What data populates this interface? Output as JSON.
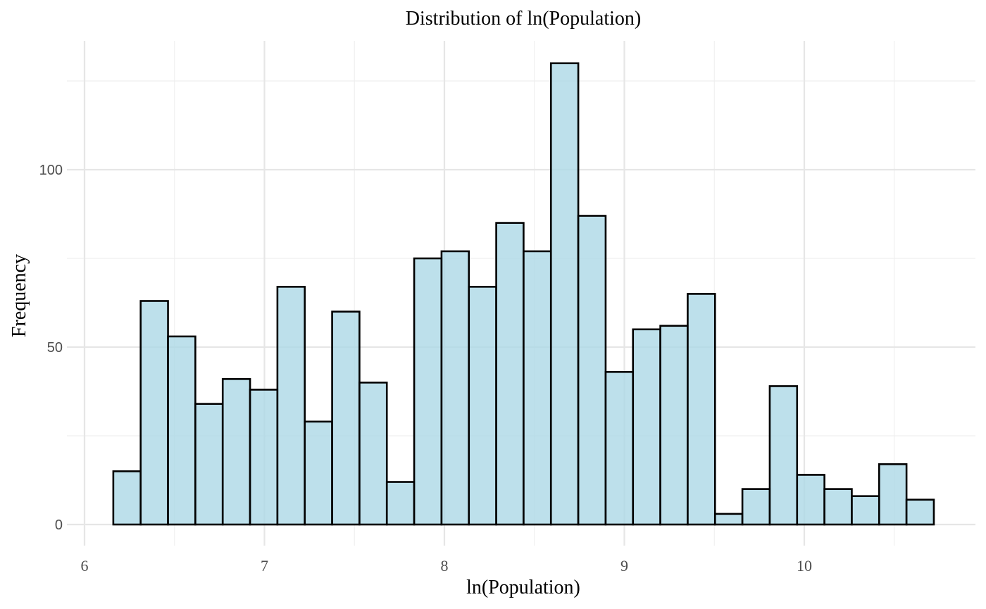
{
  "chart_data": {
    "type": "bar",
    "title": "Distribution of ln(Population)",
    "xlabel": "ln(Population)",
    "ylabel": "Frequency",
    "xlim": [
      6.0,
      10.85
    ],
    "ylim": [
      -6,
      138
    ],
    "x_ticks": [
      6,
      7,
      8,
      9,
      10
    ],
    "x_tick_labels": [
      "6",
      "7",
      "8",
      "9",
      "10"
    ],
    "y_ticks": [
      0,
      50,
      100
    ],
    "y_tick_labels": [
      "0",
      "50",
      "100"
    ],
    "grid": true,
    "legend": "none",
    "bin_width": 0.152,
    "bin_edges_start": 6.16,
    "bins": [
      {
        "x": 6.24,
        "count": 15
      },
      {
        "x": 6.39,
        "count": 63
      },
      {
        "x": 6.54,
        "count": 53
      },
      {
        "x": 6.69,
        "count": 34
      },
      {
        "x": 6.85,
        "count": 41
      },
      {
        "x": 7.0,
        "count": 38
      },
      {
        "x": 7.15,
        "count": 67
      },
      {
        "x": 7.3,
        "count": 29
      },
      {
        "x": 7.45,
        "count": 60
      },
      {
        "x": 7.61,
        "count": 40
      },
      {
        "x": 7.76,
        "count": 12
      },
      {
        "x": 7.91,
        "count": 75
      },
      {
        "x": 8.06,
        "count": 77
      },
      {
        "x": 8.21,
        "count": 67
      },
      {
        "x": 8.37,
        "count": 85
      },
      {
        "x": 8.52,
        "count": 77
      },
      {
        "x": 8.67,
        "count": 130
      },
      {
        "x": 8.82,
        "count": 87
      },
      {
        "x": 8.97,
        "count": 43
      },
      {
        "x": 9.13,
        "count": 55
      },
      {
        "x": 9.28,
        "count": 56
      },
      {
        "x": 9.43,
        "count": 65
      },
      {
        "x": 9.58,
        "count": 3
      },
      {
        "x": 9.73,
        "count": 10
      },
      {
        "x": 9.89,
        "count": 39
      },
      {
        "x": 10.04,
        "count": 14
      },
      {
        "x": 10.19,
        "count": 10
      },
      {
        "x": 10.34,
        "count": 8
      },
      {
        "x": 10.49,
        "count": 17
      },
      {
        "x": 10.65,
        "count": 7
      }
    ],
    "colors": {
      "bar_fill": "#add8e6",
      "bar_stroke": "#000000"
    },
    "bar_alpha": 0.8
  }
}
